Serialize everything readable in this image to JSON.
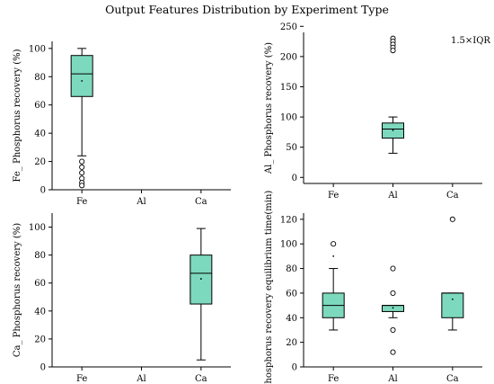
{
  "title": "Output Features Distribution by Experiment Type",
  "annotation": "1.5×IQR",
  "colors": {
    "box_fill": "#7dd9bd",
    "line": "#000000"
  },
  "chart_data": [
    {
      "type": "box",
      "ylabel": "Fe_ Phosphorus recovery (%)",
      "categories": [
        "Fe",
        "Al",
        "Ca"
      ],
      "ylim": [
        0,
        105
      ],
      "yticks": [
        0,
        20,
        40,
        60,
        80,
        100
      ],
      "boxes": [
        {
          "category": "Fe",
          "whisker_low": 24,
          "q1": 66,
          "median": 82,
          "q3": 95,
          "whisker_high": 100,
          "mean": 77,
          "outliers": [
            20,
            16,
            12,
            8,
            5,
            3
          ]
        }
      ]
    },
    {
      "type": "box",
      "ylabel": "Al_ Phosphorus recovery (%)",
      "categories": [
        "Fe",
        "Al",
        "Ca"
      ],
      "ylim": [
        -10,
        240
      ],
      "yticks": [
        0,
        50,
        100,
        150,
        200,
        250
      ],
      "boxes": [
        {
          "category": "Al",
          "whisker_low": 40,
          "q1": 65,
          "median": 80,
          "q3": 90,
          "whisker_high": 100,
          "mean": 78,
          "outliers": [
            230,
            225,
            220,
            215,
            210
          ]
        }
      ]
    },
    {
      "type": "box",
      "ylabel": "Ca_ Phosphorus recovery (%)",
      "categories": [
        "Fe",
        "Al",
        "Ca"
      ],
      "ylim": [
        0,
        110
      ],
      "yticks": [
        0,
        20,
        40,
        60,
        80,
        100
      ],
      "boxes": [
        {
          "category": "Ca",
          "whisker_low": 5,
          "q1": 45,
          "median": 67,
          "q3": 80,
          "whisker_high": 99,
          "mean": 63,
          "outliers": []
        }
      ]
    },
    {
      "type": "box",
      "ylabel": "Phosphorus recovery equilibrium time(min)",
      "categories": [
        "Fe",
        "Al",
        "Ca"
      ],
      "ylim": [
        0,
        125
      ],
      "yticks": [
        0,
        20,
        40,
        60,
        80,
        100,
        120
      ],
      "boxes": [
        {
          "category": "Fe",
          "whisker_low": 30,
          "q1": 40,
          "median": 50,
          "q3": 60,
          "whisker_high": 80,
          "mean": 90,
          "outliers": [
            100
          ]
        },
        {
          "category": "Al",
          "whisker_low": 40,
          "q1": 45,
          "median": 50,
          "q3": 50,
          "whisker_high": 50,
          "mean": 48,
          "outliers": [
            80,
            60,
            30,
            12
          ]
        },
        {
          "category": "Ca",
          "whisker_low": 30,
          "q1": 40,
          "median": 60,
          "q3": 60,
          "whisker_high": 60,
          "mean": 55,
          "outliers": [
            120
          ]
        }
      ]
    }
  ]
}
